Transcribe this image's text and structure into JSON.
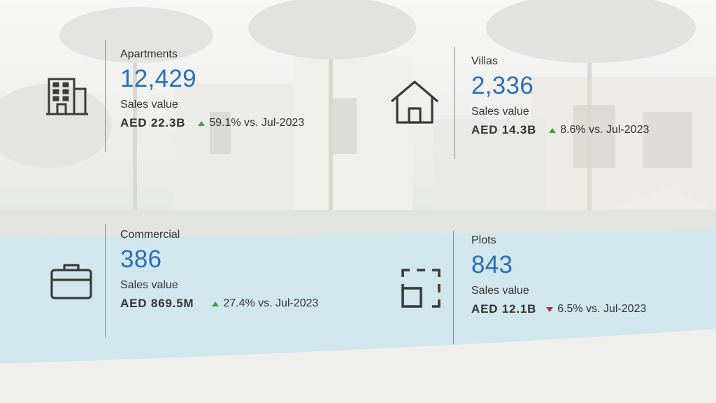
{
  "colors": {
    "count": "#2a6fb5",
    "text": "#333333",
    "icon": "#3a3a3a",
    "up": "#3ba33b",
    "down": "#d12a2a"
  },
  "cards": [
    {
      "label": "Apartments",
      "count": "12,429",
      "sales_label": "Sales value",
      "sales_value": "AED 22.3B",
      "change": "59.1% vs. Jul-2023",
      "trend": "up",
      "icon": "building-icon"
    },
    {
      "label": "Villas",
      "count": "2,336",
      "sales_label": "Sales value",
      "sales_value": "AED 14.3B",
      "change": "8.6% vs. Jul-2023",
      "trend": "up",
      "icon": "house-icon"
    },
    {
      "label": "Commercial",
      "count": "386",
      "sales_label": "Sales value",
      "sales_value": "AED 869.5M",
      "change": "27.4% vs. Jul-2023",
      "trend": "up",
      "icon": "briefcase-icon"
    },
    {
      "label": "Plots",
      "count": "843",
      "sales_label": "Sales value",
      "sales_value": "AED 12.1B",
      "change": "6.5% vs. Jul-2023",
      "trend": "down",
      "icon": "plot-icon"
    }
  ]
}
